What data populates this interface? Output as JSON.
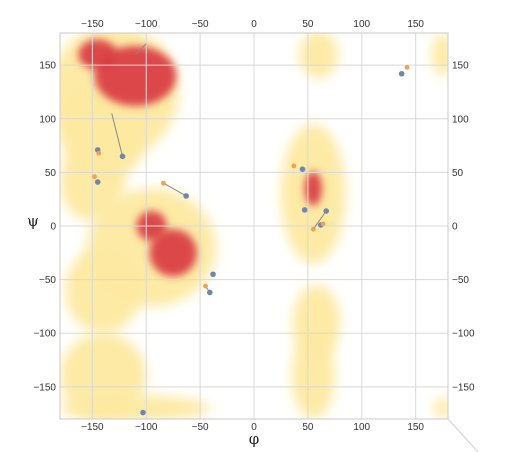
{
  "chart_data": {
    "type": "scatter",
    "title": "",
    "xlabel": "φ",
    "ylabel": "ψ",
    "xlim": [
      -180,
      180
    ],
    "ylim": [
      -180,
      180
    ],
    "xticks": [
      -150,
      -100,
      -50,
      0,
      50,
      100,
      150
    ],
    "yticks": [
      150,
      100,
      50,
      0,
      -50,
      -100,
      -150
    ],
    "xtick_labels": [
      "−150",
      "−100",
      "−50",
      "0",
      "50",
      "100",
      "150"
    ],
    "ytick_labels": [
      "150",
      "100",
      "50",
      "0",
      "−50",
      "−100",
      "−150"
    ],
    "grid": true,
    "legend": "none",
    "colors": {
      "allowed": "#fde9a0",
      "favored": "#d93a42",
      "point_blue": "#6f86ad",
      "point_orange": "#f3a050",
      "connector": "#888888",
      "grid": "#d8d8d8"
    },
    "density_regions": [
      {
        "level": "allowed",
        "phi": -130,
        "psi": 125,
        "rphi": 60,
        "rpsi": 62
      },
      {
        "level": "allowed",
        "phi": -140,
        "psi": 90,
        "rphi": 40,
        "rpsi": 50
      },
      {
        "level": "allowed",
        "phi": -150,
        "psi": 40,
        "rphi": 30,
        "rpsi": 35
      },
      {
        "level": "allowed",
        "phi": -95,
        "psi": -20,
        "rphi": 60,
        "rpsi": 55
      },
      {
        "level": "allowed",
        "phi": -140,
        "psi": -60,
        "rphi": 35,
        "rpsi": 40
      },
      {
        "level": "allowed",
        "phi": -140,
        "psi": -140,
        "rphi": 40,
        "rpsi": 40
      },
      {
        "level": "allowed",
        "phi": -110,
        "psi": -170,
        "rphi": 70,
        "rpsi": 12
      },
      {
        "level": "allowed",
        "phi": 55,
        "psi": 30,
        "rphi": 30,
        "rpsi": 65
      },
      {
        "level": "allowed",
        "phi": 60,
        "psi": 160,
        "rphi": 18,
        "rpsi": 22
      },
      {
        "level": "allowed",
        "phi": 58,
        "psi": -90,
        "rphi": 22,
        "rpsi": 35
      },
      {
        "level": "allowed",
        "phi": 55,
        "psi": -140,
        "rphi": 20,
        "rpsi": 40
      },
      {
        "level": "allowed",
        "phi": 175,
        "psi": 160,
        "rphi": 10,
        "rpsi": 20
      },
      {
        "level": "allowed",
        "phi": 175,
        "psi": -170,
        "rphi": 8,
        "rpsi": 10
      },
      {
        "level": "favored",
        "phi": -110,
        "psi": 140,
        "rphi": 38,
        "rpsi": 28
      },
      {
        "level": "favored",
        "phi": -145,
        "psi": 160,
        "rphi": 18,
        "rpsi": 14
      },
      {
        "level": "favored",
        "phi": -75,
        "psi": -25,
        "rphi": 22,
        "rpsi": 22
      },
      {
        "level": "favored",
        "phi": -95,
        "psi": 0,
        "rphi": 14,
        "rpsi": 14
      },
      {
        "level": "favored",
        "phi": 55,
        "psi": 35,
        "rphi": 8,
        "rpsi": 16
      }
    ],
    "series": [
      {
        "values": [
          {
            "x": 137,
            "y": 142,
            "c": "blue"
          },
          {
            "x": -145,
            "y": 71,
            "c": "blue"
          },
          {
            "x": -122,
            "y": 65,
            "c": "blue"
          },
          {
            "x": -145,
            "y": 41,
            "c": "blue"
          },
          {
            "x": -63,
            "y": 28,
            "c": "blue"
          },
          {
            "x": 45,
            "y": 53,
            "c": "blue"
          },
          {
            "x": 47,
            "y": 15,
            "c": "blue"
          },
          {
            "x": 67,
            "y": 14,
            "c": "blue"
          },
          {
            "x": 62,
            "y": 1,
            "c": "blue"
          },
          {
            "x": -38,
            "y": -45,
            "c": "blue"
          },
          {
            "x": -41,
            "y": -62,
            "c": "blue"
          },
          {
            "x": -103,
            "y": -174,
            "c": "blue"
          },
          {
            "x": 142,
            "y": 148,
            "c": "orange"
          },
          {
            "x": -144,
            "y": 68,
            "c": "orange"
          },
          {
            "x": -148,
            "y": 46,
            "c": "orange"
          },
          {
            "x": -84,
            "y": 40,
            "c": "orange"
          },
          {
            "x": 37,
            "y": 56,
            "c": "orange"
          },
          {
            "x": 55,
            "y": -3,
            "c": "orange"
          },
          {
            "x": 64,
            "y": 2,
            "c": "orange"
          },
          {
            "x": -45,
            "y": -56,
            "c": "orange"
          }
        ]
      }
    ],
    "connectors": [
      {
        "from": [
          -132,
          105
        ],
        "to": [
          -122,
          65
        ]
      },
      {
        "from": [
          -84,
          40
        ],
        "to": [
          -63,
          28
        ]
      },
      {
        "from": [
          -100,
          170
        ],
        "to": [
          -110,
          160
        ]
      },
      {
        "from": [
          67,
          14
        ],
        "to": [
          55,
          -3
        ]
      },
      {
        "from": [
          -41,
          -62
        ],
        "to": [
          -45,
          -56
        ]
      }
    ]
  }
}
